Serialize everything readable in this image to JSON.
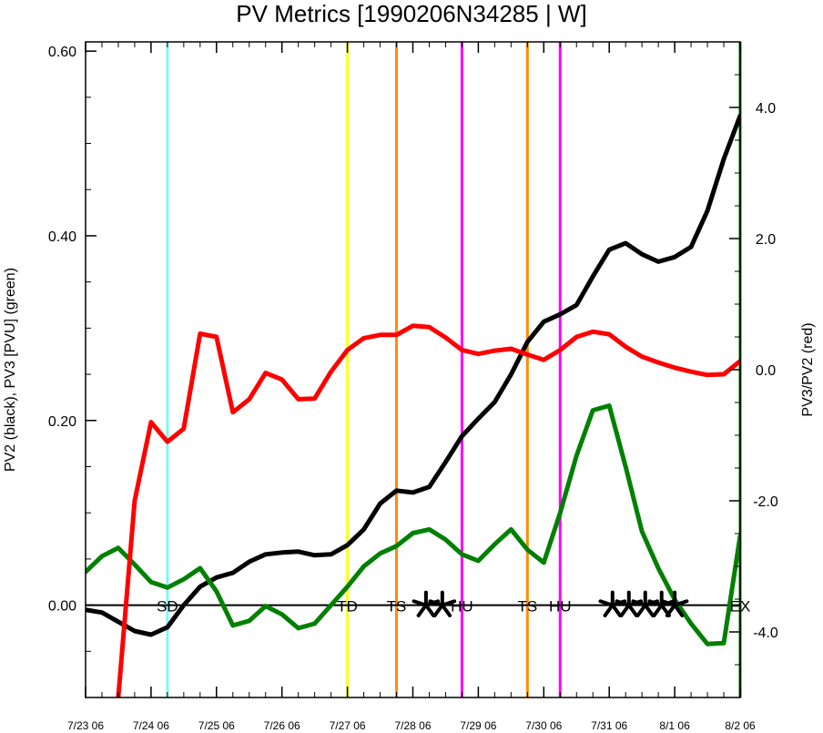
{
  "chart_data": {
    "type": "line",
    "title": "PV Metrics [1990206N34285 | W]",
    "ylabel_left": "PV2 (black), PV3 [PVU] (green)",
    "ylabel_right": "PV3/PV2 (red)",
    "x_range_days": [
      0,
      10
    ],
    "x_ticks": [
      {
        "day": 0,
        "label": "7/23 06"
      },
      {
        "day": 1,
        "label": "7/24 06"
      },
      {
        "day": 2,
        "label": "7/25 06"
      },
      {
        "day": 3,
        "label": "7/26 06"
      },
      {
        "day": 4,
        "label": "7/27 06"
      },
      {
        "day": 5,
        "label": "7/28 06"
      },
      {
        "day": 6,
        "label": "7/29 06"
      },
      {
        "day": 7,
        "label": "7/30 06"
      },
      {
        "day": 8,
        "label": "7/31 06"
      },
      {
        "day": 9,
        "label": "8/1 06"
      },
      {
        "day": 10,
        "label": "8/2 06"
      }
    ],
    "left_axis": {
      "range": [
        -0.1,
        0.61
      ],
      "ticks": [
        {
          "value": 0.0,
          "label": "0.00"
        },
        {
          "value": 0.2,
          "label": "0.20"
        },
        {
          "value": 0.4,
          "label": "0.40"
        },
        {
          "value": 0.6,
          "label": "0.60"
        }
      ],
      "minor_step": 0.05
    },
    "right_axis": {
      "range": [
        -5.0,
        5.0
      ],
      "ticks": [
        {
          "value": -4.0,
          "label": "-4.0"
        },
        {
          "value": -2.0,
          "label": "-2.0"
        },
        {
          "value": 0.0,
          "label": "0.0"
        },
        {
          "value": 2.0,
          "label": "2.0"
        },
        {
          "value": 4.0,
          "label": "4.0"
        }
      ],
      "minor_step": 0.5
    },
    "series": [
      {
        "color": "#000000",
        "axis": "left",
        "x": [
          0,
          0.25,
          0.5,
          0.75,
          1,
          1.25,
          1.5,
          1.75,
          2,
          2.25,
          2.5,
          2.75,
          3,
          3.25,
          3.5,
          3.75,
          4,
          4.25,
          4.5,
          4.75,
          5,
          5.25,
          5.5,
          5.75,
          6,
          6.25,
          6.5,
          6.75,
          7,
          7.25,
          7.5,
          7.75,
          8,
          8.25,
          8.5,
          8.75,
          9,
          9.25,
          9.5,
          9.75,
          10
        ],
        "values": [
          -0.005,
          -0.008,
          -0.018,
          -0.028,
          -0.032,
          -0.024,
          0.0,
          0.02,
          0.03,
          0.035,
          0.047,
          0.055,
          0.057,
          0.058,
          0.054,
          0.055,
          0.065,
          0.082,
          0.11,
          0.124,
          0.122,
          0.128,
          0.155,
          0.183,
          0.202,
          0.22,
          0.25,
          0.285,
          0.307,
          0.315,
          0.325,
          0.356,
          0.385,
          0.392,
          0.38,
          0.372,
          0.377,
          0.388,
          0.427,
          0.483,
          0.53
        ]
      },
      {
        "color": "#008000",
        "axis": "left",
        "x": [
          0,
          0.25,
          0.5,
          0.75,
          1,
          1.25,
          1.5,
          1.75,
          2,
          2.25,
          2.5,
          2.75,
          3,
          3.25,
          3.5,
          3.75,
          4,
          4.25,
          4.5,
          4.75,
          5,
          5.25,
          5.5,
          5.75,
          6,
          6.25,
          6.5,
          6.75,
          7,
          7.25,
          7.5,
          7.75,
          8,
          8.25,
          8.5,
          8.75,
          9,
          9.25,
          9.5,
          9.75,
          10
        ],
        "values": [
          0.036,
          0.053,
          0.062,
          0.044,
          0.025,
          0.019,
          0.028,
          0.04,
          0.015,
          -0.022,
          -0.017,
          -0.001,
          -0.01,
          -0.025,
          -0.02,
          0.0,
          0.02,
          0.042,
          0.056,
          0.064,
          0.078,
          0.082,
          0.071,
          0.055,
          0.048,
          0.066,
          0.082,
          0.06,
          0.046,
          0.1,
          0.162,
          0.211,
          0.216,
          0.15,
          0.08,
          0.04,
          0.006,
          -0.02,
          -0.042,
          -0.041,
          0.075
        ]
      },
      {
        "color": "#ff0000",
        "axis": "right",
        "x": [
          0.5,
          0.75,
          1,
          1.25,
          1.5,
          1.75,
          2,
          2.25,
          2.5,
          2.75,
          3,
          3.25,
          3.5,
          3.75,
          4,
          4.25,
          4.5,
          4.75,
          5,
          5.25,
          5.5,
          5.75,
          6,
          6.25,
          6.5,
          6.75,
          7,
          7.25,
          7.5,
          7.75,
          8,
          8.25,
          8.5,
          8.75,
          9,
          9.25,
          9.5,
          9.75,
          10
        ],
        "values": [
          -5.0,
          -2.0,
          -0.8,
          -1.1,
          -0.9,
          0.55,
          0.5,
          -0.65,
          -0.45,
          -0.05,
          -0.15,
          -0.45,
          -0.44,
          -0.03,
          0.3,
          0.48,
          0.53,
          0.53,
          0.67,
          0.65,
          0.49,
          0.3,
          0.24,
          0.29,
          0.32,
          0.23,
          0.15,
          0.3,
          0.5,
          0.58,
          0.54,
          0.35,
          0.2,
          0.11,
          0.03,
          -0.03,
          -0.08,
          -0.07,
          0.13
        ]
      }
    ],
    "zero_line": 0.0,
    "vertical_lines": [
      {
        "day": 1.25,
        "color": "#7ff7f7"
      },
      {
        "day": 4.0,
        "color": "#ffff22"
      },
      {
        "day": 4.75,
        "color": "#ff8c00"
      },
      {
        "day": 5.75,
        "color": "#ff00ff"
      },
      {
        "day": 6.75,
        "color": "#ff8c00"
      },
      {
        "day": 7.25,
        "color": "#ff00ff"
      },
      {
        "day": 10.0,
        "color": "#008000"
      }
    ],
    "stage_labels": [
      {
        "day": 1.25,
        "text": "SD"
      },
      {
        "day": 4.0,
        "text": "TD"
      },
      {
        "day": 4.75,
        "text": "TS"
      },
      {
        "day": 5.75,
        "text": "HU"
      },
      {
        "day": 6.75,
        "text": "TS"
      },
      {
        "day": 7.25,
        "text": "HU"
      },
      {
        "day": 10.0,
        "text": "EX"
      }
    ],
    "star_markers_days": [
      5.2,
      5.45,
      8.05,
      8.3,
      8.55,
      8.8,
      9.0
    ]
  }
}
